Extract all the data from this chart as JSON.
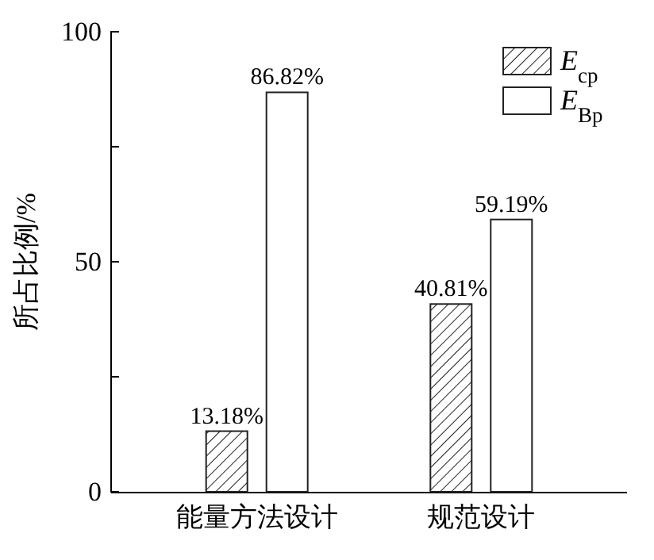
{
  "chart_data": {
    "type": "bar",
    "ylabel": "所占比例/%",
    "categories": [
      "能量方法设计",
      "规范设计"
    ],
    "series": [
      {
        "name": "E$_{cp}$",
        "color": "#222222",
        "values": [
          13.18,
          40.81
        ],
        "value_labels": [
          "13.18%",
          "40.81%"
        ]
      },
      {
        "name": "E$_{Bp}$",
        "color": "#ffffff",
        "values": [
          86.82,
          59.19
        ],
        "value_labels": [
          "86.82%",
          "59.19%"
        ]
      }
    ],
    "ylim": [
      0,
      100
    ],
    "yticks": [
      0,
      {
        "value": 25,
        "label": null
      },
      50,
      {
        "value": 75,
        "label": null
      },
      100
    ],
    "grid": false,
    "legend": "top right"
  }
}
